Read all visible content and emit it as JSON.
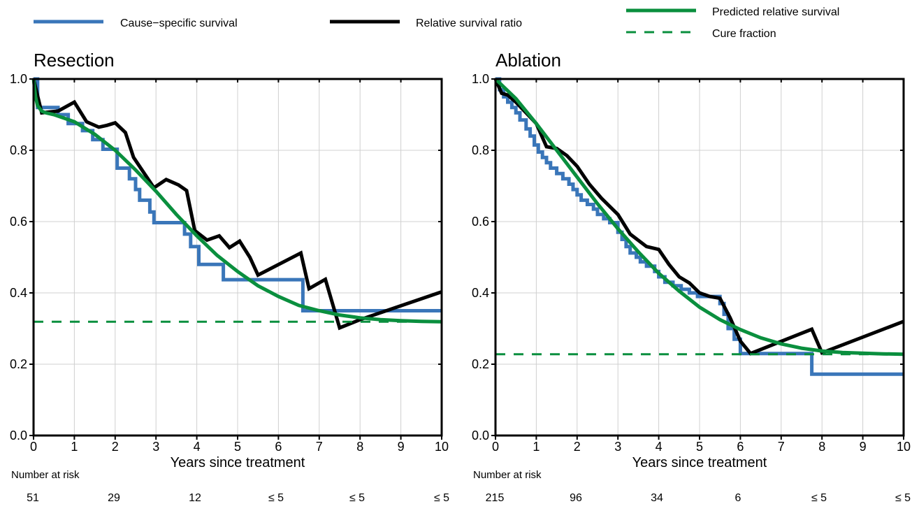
{
  "legend": {
    "items": [
      {
        "label": "Cause−specific survival",
        "color": "#3a76b9",
        "style": "solid"
      },
      {
        "label": "Relative survival ratio",
        "color": "#000000",
        "style": "solid"
      },
      {
        "label": "Predicted relative survival",
        "color": "#0a8f3e",
        "style": "solid"
      },
      {
        "label": "Cure fraction",
        "color": "#0a8f3e",
        "style": "dashed"
      }
    ]
  },
  "risk_header": "Number at risk",
  "chart_data": [
    {
      "type": "line",
      "title": "Resection",
      "xlabel": "Years since treatment",
      "ylabel": "",
      "xlim": [
        0,
        10
      ],
      "ylim": [
        0,
        1
      ],
      "x_ticks": [
        "0",
        "1",
        "2",
        "3",
        "4",
        "5",
        "6",
        "7",
        "8",
        "9",
        "10"
      ],
      "y_ticks": [
        "0.0",
        "0.2",
        "0.4",
        "0.6",
        "0.8",
        "1.0"
      ],
      "grid": true,
      "number_at_risk": [
        "51",
        "29",
        "12",
        "≤ 5",
        "≤ 5",
        "≤ 5"
      ],
      "series": [
        {
          "name": "Cause−specific survival",
          "color": "#3a76b9",
          "step": true,
          "x": [
            0,
            0.1,
            0.6,
            0.85,
            1.2,
            1.45,
            1.7,
            2.05,
            2.35,
            2.5,
            2.6,
            2.85,
            2.95,
            3.7,
            3.85,
            4.05,
            4.65,
            6.6,
            10
          ],
          "y": [
            1.0,
            0.92,
            0.9,
            0.875,
            0.855,
            0.83,
            0.803,
            0.75,
            0.72,
            0.69,
            0.66,
            0.627,
            0.597,
            0.565,
            0.53,
            0.48,
            0.437,
            0.35,
            0.35
          ]
        },
        {
          "name": "Relative survival ratio",
          "color": "#000000",
          "step": false,
          "x": [
            0,
            0.2,
            0.6,
            1.0,
            1.3,
            1.6,
            1.8,
            2.0,
            2.25,
            2.45,
            2.95,
            3.25,
            3.55,
            3.75,
            3.95,
            4.25,
            4.55,
            4.8,
            5.05,
            5.3,
            5.5,
            6.55,
            6.75,
            7.15,
            7.5,
            8.0,
            10
          ],
          "y": [
            1.0,
            0.905,
            0.91,
            0.935,
            0.88,
            0.865,
            0.87,
            0.877,
            0.85,
            0.78,
            0.695,
            0.718,
            0.703,
            0.687,
            0.575,
            0.548,
            0.56,
            0.527,
            0.545,
            0.5,
            0.45,
            0.512,
            0.412,
            0.438,
            0.302,
            0.325,
            0.403
          ]
        },
        {
          "name": "Predicted relative survival",
          "color": "#0a8f3e",
          "step": false,
          "x": [
            0,
            0.05,
            0.1,
            0.2,
            0.3,
            0.5,
            1.0,
            1.5,
            2.0,
            2.5,
            3.0,
            3.5,
            4.0,
            4.5,
            5.0,
            5.5,
            6.0,
            6.5,
            7.0,
            7.5,
            8.0,
            8.5,
            9.0,
            9.5,
            10.0
          ],
          "y": [
            1.0,
            0.95,
            0.925,
            0.91,
            0.905,
            0.9,
            0.88,
            0.845,
            0.8,
            0.745,
            0.685,
            0.62,
            0.56,
            0.505,
            0.46,
            0.42,
            0.39,
            0.365,
            0.35,
            0.338,
            0.33,
            0.325,
            0.322,
            0.32,
            0.319
          ]
        },
        {
          "name": "Cure fraction",
          "color": "#0a8f3e",
          "step": false,
          "dashed": true,
          "x": [
            0,
            10
          ],
          "y": [
            0.319,
            0.319
          ]
        }
      ]
    },
    {
      "type": "line",
      "title": "Ablation",
      "xlabel": "Years since treatment",
      "ylabel": "",
      "xlim": [
        0,
        10
      ],
      "ylim": [
        0,
        1
      ],
      "x_ticks": [
        "0",
        "1",
        "2",
        "3",
        "4",
        "5",
        "6",
        "7",
        "8",
        "9",
        "10"
      ],
      "y_ticks": [
        "0.0",
        "0.2",
        "0.4",
        "0.6",
        "0.8",
        "1.0"
      ],
      "grid": true,
      "number_at_risk": [
        "215",
        "96",
        "34",
        "6",
        "≤ 5",
        "≤ 5"
      ],
      "series": [
        {
          "name": "Cause−specific survival",
          "color": "#3a76b9",
          "step": true,
          "x": [
            0,
            0.1,
            0.2,
            0.3,
            0.4,
            0.5,
            0.6,
            0.75,
            0.85,
            0.95,
            1.05,
            1.15,
            1.25,
            1.35,
            1.5,
            1.65,
            1.8,
            1.9,
            2.0,
            2.1,
            2.25,
            2.4,
            2.5,
            2.65,
            2.8,
            3.0,
            3.1,
            3.2,
            3.3,
            3.45,
            3.55,
            3.7,
            3.9,
            4.0,
            4.15,
            4.35,
            4.55,
            4.75,
            4.95,
            5.5,
            5.6,
            5.7,
            5.85,
            6.0,
            7.75,
            10
          ],
          "y": [
            1.0,
            0.97,
            0.95,
            0.935,
            0.92,
            0.905,
            0.885,
            0.86,
            0.84,
            0.815,
            0.795,
            0.78,
            0.765,
            0.75,
            0.735,
            0.72,
            0.705,
            0.69,
            0.675,
            0.66,
            0.648,
            0.635,
            0.62,
            0.608,
            0.597,
            0.57,
            0.55,
            0.53,
            0.512,
            0.5,
            0.487,
            0.475,
            0.46,
            0.445,
            0.43,
            0.42,
            0.41,
            0.4,
            0.39,
            0.37,
            0.34,
            0.3,
            0.27,
            0.23,
            0.172,
            0.172
          ]
        },
        {
          "name": "Relative survival ratio",
          "color": "#000000",
          "step": false,
          "x": [
            0,
            0.15,
            0.3,
            0.5,
            0.75,
            1.0,
            1.25,
            1.5,
            1.75,
            2.0,
            2.3,
            2.6,
            3.0,
            3.3,
            3.7,
            4.0,
            4.25,
            4.5,
            4.75,
            5.0,
            5.25,
            5.5,
            5.75,
            6.0,
            6.25,
            7.75,
            8.0,
            10
          ],
          "y": [
            1.0,
            0.96,
            0.955,
            0.935,
            0.905,
            0.875,
            0.81,
            0.805,
            0.785,
            0.755,
            0.705,
            0.665,
            0.62,
            0.565,
            0.53,
            0.522,
            0.48,
            0.445,
            0.428,
            0.4,
            0.39,
            0.385,
            0.33,
            0.265,
            0.23,
            0.298,
            0.232,
            0.32
          ]
        },
        {
          "name": "Predicted relative survival",
          "color": "#0a8f3e",
          "step": false,
          "x": [
            0,
            0.5,
            1.0,
            1.5,
            2.0,
            2.5,
            3.0,
            3.5,
            4.0,
            4.5,
            5.0,
            5.5,
            6.0,
            6.5,
            7.0,
            7.5,
            8.0,
            8.5,
            9.0,
            9.5,
            10.0
          ],
          "y": [
            1.0,
            0.945,
            0.875,
            0.8,
            0.725,
            0.65,
            0.58,
            0.515,
            0.455,
            0.405,
            0.36,
            0.325,
            0.297,
            0.274,
            0.257,
            0.245,
            0.237,
            0.233,
            0.231,
            0.229,
            0.228
          ]
        },
        {
          "name": "Cure fraction",
          "color": "#0a8f3e",
          "step": false,
          "dashed": true,
          "x": [
            0,
            10
          ],
          "y": [
            0.228,
            0.228
          ]
        }
      ]
    }
  ]
}
